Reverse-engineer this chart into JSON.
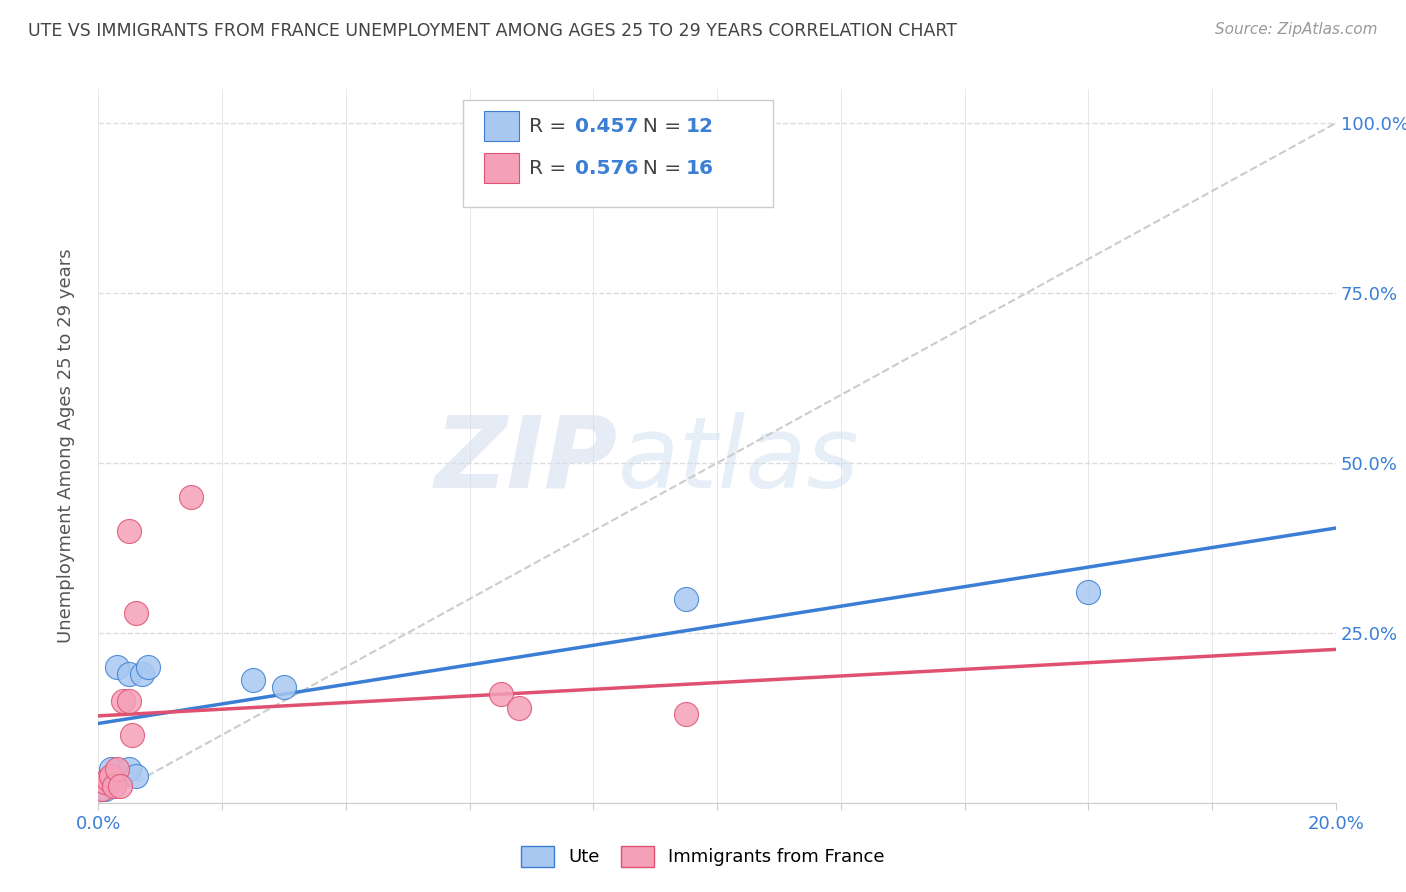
{
  "title": "UTE VS IMMIGRANTS FROM FRANCE UNEMPLOYMENT AMONG AGES 25 TO 29 YEARS CORRELATION CHART",
  "source": "Source: ZipAtlas.com",
  "ylabel": "Unemployment Among Ages 25 to 29 years",
  "xlim": [
    0.0,
    20.0
  ],
  "ylim": [
    0.0,
    105.0
  ],
  "ute_x": [
    0.1,
    0.2,
    0.3,
    0.5,
    0.5,
    0.6,
    0.7,
    0.8,
    2.5,
    3.0,
    9.5,
    16.0
  ],
  "ute_y": [
    2.0,
    5.0,
    20.0,
    19.0,
    5.0,
    4.0,
    19.0,
    20.0,
    18.0,
    17.0,
    30.0,
    31.0
  ],
  "france_x": [
    0.05,
    0.1,
    0.15,
    0.2,
    0.25,
    0.3,
    0.35,
    0.4,
    0.5,
    0.5,
    0.55,
    0.6,
    1.5,
    6.5,
    6.8,
    9.5
  ],
  "france_y": [
    2.0,
    3.0,
    3.5,
    4.0,
    2.5,
    5.0,
    2.5,
    15.0,
    40.0,
    15.0,
    10.0,
    28.0,
    45.0,
    16.0,
    14.0,
    13.0
  ],
  "ute_color": "#a8c8f0",
  "france_color": "#f4a0b8",
  "ute_line_color": "#3a7fd5",
  "france_line_color": "#e05070",
  "ref_line_color": "#cccccc",
  "legend_label_ute": "Ute",
  "legend_label_france": "Immigrants from France",
  "title_color": "#444444",
  "axis_label_color": "#555555",
  "tick_color": "#3a7fd5",
  "watermark_zip": "ZIP",
  "watermark_atlas": "atlas",
  "background_color": "#ffffff",
  "grid_color": "#dddddd",
  "blue_color": "#3a7fd5",
  "R_ute": "0.457",
  "N_ute": "12",
  "R_france": "0.576",
  "N_france": "16",
  "y_ticks": [
    0,
    25,
    50,
    75,
    100
  ],
  "y_tick_labels": [
    "",
    "25.0%",
    "50.0%",
    "75.0%",
    "100.0%"
  ],
  "x_tick_labels_show": [
    "0.0%",
    "20.0%"
  ]
}
